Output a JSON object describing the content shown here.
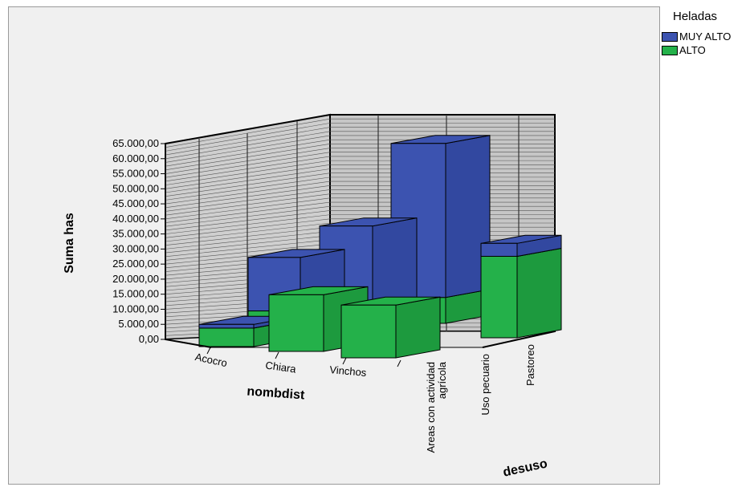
{
  "chart_data": {
    "type": "bar",
    "subtype": "3d-grouped",
    "ylabel": "Suma has",
    "xlabel": "nombdist",
    "zlabel": "desuso",
    "categories": [
      "Acocro",
      "Chiara",
      "Vinchos"
    ],
    "depth_categories": [
      "Areas con actividad\nagrícola",
      "Uso pecuario",
      "Pastoreo"
    ],
    "yticks": [
      "0,00",
      "5.000,00",
      "10.000,00",
      "15.000,00",
      "20.000,00",
      "25.000,00",
      "30.000,00",
      "35.000,00",
      "40.000,00",
      "45.000,00",
      "50.000,00",
      "55.000,00",
      "60.000,00",
      "65.000,00"
    ],
    "ylim": [
      0,
      65000
    ],
    "legend_title": "Heladas",
    "series": [
      {
        "name": "MUY ALTO",
        "color": "#3c53b0"
      },
      {
        "name": "ALTO",
        "color": "#24b14a"
      }
    ],
    "bars": [
      {
        "category": "Acocro",
        "depth": "Areas con actividad\nagrícola",
        "alto": 5000,
        "muy_alto": 2000
      },
      {
        "category": "Chiara",
        "depth": "Areas con actividad\nagrícola",
        "alto": 4000,
        "muy_alto": 17000
      },
      {
        "category": "Chiara",
        "depth": "Uso pecuario",
        "alto": 17000,
        "muy_alto": 0
      },
      {
        "category": "Vinchos",
        "depth": "Areas con actividad\nagrícola",
        "alto": 4000,
        "muy_alto": 23000
      },
      {
        "category": "Vinchos",
        "depth": "Uso pecuario",
        "alto": 15000,
        "muy_alto": 0
      },
      {
        "category": "Vinchos",
        "depth": "Pastoreo",
        "alto": 7000,
        "muy_alto": 42000
      },
      {
        "category": "Vinchos",
        "depth": "Pastoreo-right",
        "alto": 22000,
        "muy_alto": 3500
      }
    ]
  }
}
